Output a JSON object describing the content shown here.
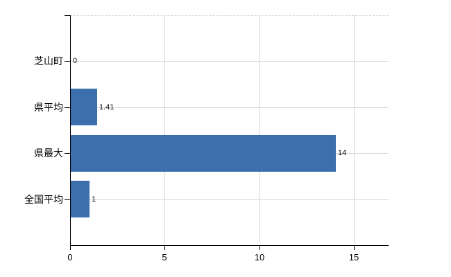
{
  "chart_data": {
    "type": "bar",
    "orientation": "horizontal",
    "title": "",
    "xlabel": "",
    "ylabel": "",
    "categories": [
      "芝山町",
      "県平均",
      "県最大",
      "全国平均"
    ],
    "values": [
      0,
      1.41,
      14,
      1
    ],
    "value_labels": [
      "0",
      "1.41",
      "14",
      "1"
    ],
    "x_ticks": [
      0,
      5,
      10,
      15
    ],
    "x_tick_labels": [
      "0",
      "5",
      "10",
      "15"
    ],
    "xlim": [
      0,
      16.83
    ],
    "grid": true,
    "legend": false,
    "colors": {
      "bar": "#3d6ead",
      "grid": "#d6d6d6",
      "axis": "#000000",
      "text": "#000000"
    }
  }
}
